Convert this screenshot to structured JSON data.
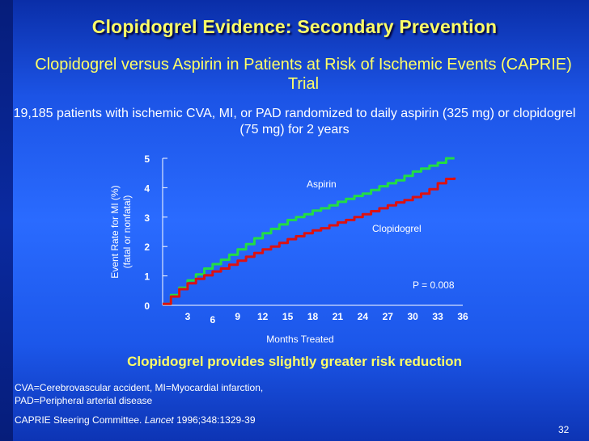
{
  "slide": {
    "title": "Clopidogrel Evidence: Secondary Prevention",
    "subtitle": "Clopidogrel versus Aspirin in Patients at Risk of Ischemic Events (CAPRIE) Trial",
    "description": "19,185 patients with ischemic CVA, MI, or PAD randomized to daily aspirin (325 mg) or clopidogrel (75 mg) for 2 years",
    "conclusion": "Clopidogrel provides slightly greater risk reduction",
    "footnote": "CVA=Cerebrovascular accident, MI=Myocardial infarction, PAD=Peripheral arterial disease",
    "reference_authors": "CAPRIE Steering Committee.",
    "reference_journal": "Lancet",
    "reference_citation": "1996;348:1329-39",
    "slide_number": "32"
  },
  "colors": {
    "aspirin": "#22dd44",
    "clopidogrel": "#dd1111",
    "title": "#ffff66",
    "text": "#ffffff"
  },
  "chart_data": {
    "type": "line",
    "xlabel": "Months Treated",
    "ylabel": "Event Rate for MI (%)",
    "ylabel_sub": "(fatal or nonfatal)",
    "x_ticks": [
      "3",
      "6",
      "9",
      "12",
      "15",
      "18",
      "21",
      "24",
      "27",
      "30",
      "33",
      "36"
    ],
    "y_ticks": [
      "0",
      "1",
      "2",
      "3",
      "4",
      "5"
    ],
    "xlim": [
      0,
      36
    ],
    "ylim": [
      0,
      5
    ],
    "grid": false,
    "annotation": "P = 0.008",
    "series": [
      {
        "name": "Aspirin",
        "color": "#22dd44",
        "x": [
          0,
          1,
          2,
          3,
          4,
          5,
          6,
          7,
          8,
          9,
          10,
          11,
          12,
          13,
          14,
          15,
          16,
          17,
          18,
          19,
          20,
          21,
          22,
          23,
          24,
          25,
          26,
          27,
          28,
          29,
          30,
          31,
          32,
          33,
          34,
          35
        ],
        "y": [
          0.05,
          0.35,
          0.6,
          0.85,
          1.05,
          1.25,
          1.4,
          1.55,
          1.72,
          1.9,
          2.08,
          2.28,
          2.45,
          2.6,
          2.75,
          2.9,
          3.0,
          3.1,
          3.22,
          3.3,
          3.4,
          3.52,
          3.62,
          3.72,
          3.8,
          3.92,
          4.05,
          4.15,
          4.25,
          4.4,
          4.55,
          4.65,
          4.75,
          4.85,
          5.0,
          5.0
        ]
      },
      {
        "name": "Clopidogrel",
        "color": "#dd1111",
        "x": [
          0,
          1,
          2,
          3,
          4,
          5,
          6,
          7,
          8,
          9,
          10,
          11,
          12,
          13,
          14,
          15,
          16,
          17,
          18,
          19,
          20,
          21,
          22,
          23,
          24,
          25,
          26,
          27,
          28,
          29,
          30,
          31,
          32,
          33,
          34,
          35
        ],
        "y": [
          0.05,
          0.3,
          0.55,
          0.75,
          0.9,
          1.02,
          1.15,
          1.25,
          1.38,
          1.52,
          1.65,
          1.78,
          1.9,
          2.0,
          2.12,
          2.25,
          2.35,
          2.45,
          2.55,
          2.62,
          2.72,
          2.82,
          2.9,
          3.0,
          3.1,
          3.2,
          3.3,
          3.4,
          3.5,
          3.58,
          3.68,
          3.8,
          3.95,
          4.15,
          4.3,
          4.35
        ]
      }
    ]
  }
}
